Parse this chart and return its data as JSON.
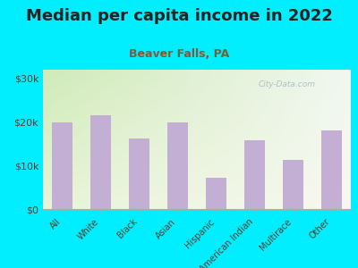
{
  "title": "Median per capita income in 2022",
  "subtitle": "Beaver Falls, PA",
  "categories": [
    "All",
    "White",
    "Black",
    "Asian",
    "Hispanic",
    "American Indian",
    "Multirace",
    "Other"
  ],
  "values": [
    19800,
    21500,
    16200,
    19800,
    7200,
    15800,
    11200,
    18000
  ],
  "bar_color": "#c4afd4",
  "background_outer": "#00eeff",
  "title_color": "#222222",
  "subtitle_color": "#7a5c3a",
  "tick_label_color": "#5a3a2a",
  "ytick_labels": [
    "$0",
    "$10k",
    "$20k",
    "$30k"
  ],
  "ytick_values": [
    0,
    10000,
    20000,
    30000
  ],
  "ylim": [
    0,
    32000
  ],
  "watermark": "City-Data.com",
  "gradient_colors": [
    "#d8edbe",
    "#f0f8e8",
    "#f8f8f0"
  ],
  "title_fontsize": 13,
  "subtitle_fontsize": 9
}
